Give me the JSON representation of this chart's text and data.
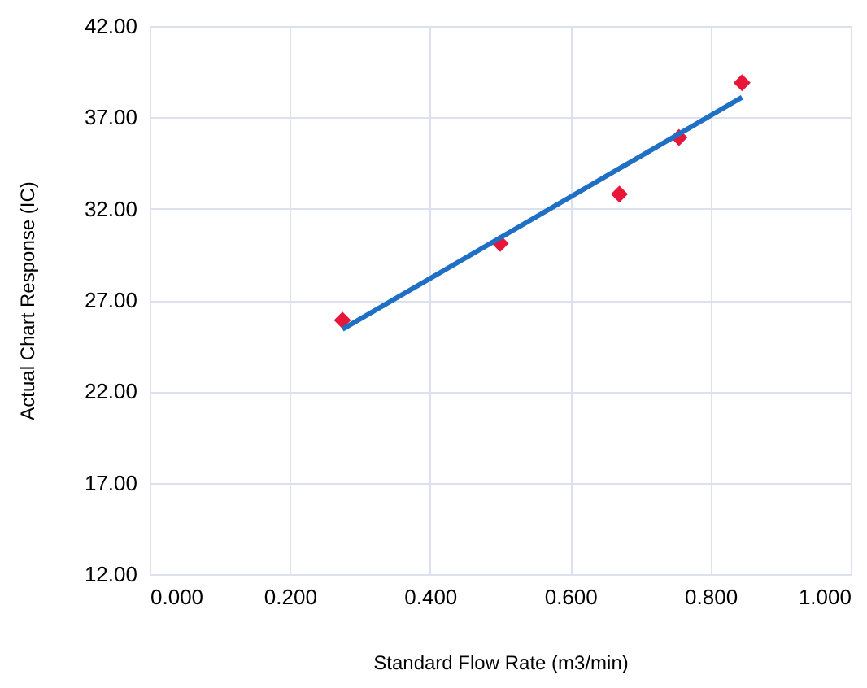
{
  "chart_data": {
    "type": "scatter",
    "xlabel": "Standard Flow Rate (m3/min)",
    "ylabel": "Actual Chart Response (IC)",
    "xlim": [
      0,
      1
    ],
    "xticks": [
      {
        "value": 0,
        "label": "0.000"
      },
      {
        "value": 0.2,
        "label": "0.200"
      },
      {
        "value": 0.4,
        "label": "0.400"
      },
      {
        "value": 0.6,
        "label": "0.600"
      },
      {
        "value": 0.8,
        "label": "0.800"
      },
      {
        "value": 1,
        "label": "1.000"
      }
    ],
    "ylim": [
      12,
      42
    ],
    "yticks": [
      {
        "value": 12,
        "label": "12.00"
      },
      {
        "value": 17,
        "label": "17.00"
      },
      {
        "value": 22,
        "label": "22.00"
      },
      {
        "value": 27,
        "label": "27.00"
      },
      {
        "value": 32,
        "label": "32.00"
      },
      {
        "value": 37,
        "label": "37.00"
      },
      {
        "value": 42,
        "label": "42.00"
      }
    ],
    "grid": true,
    "marker": "diamond",
    "series": [
      {
        "color": "#e8173a",
        "x": [
          0.275,
          0.5,
          0.67,
          0.755,
          0.845
        ],
        "values": [
          25.9,
          30.1,
          32.8,
          35.9,
          38.9
        ]
      },
      {
        "type": "line",
        "color": "#1f6fc5",
        "marker": "none",
        "line_style": "solid",
        "x": [
          0.275,
          0.845
        ],
        "values": [
          25.4,
          38.1
        ]
      }
    ]
  }
}
